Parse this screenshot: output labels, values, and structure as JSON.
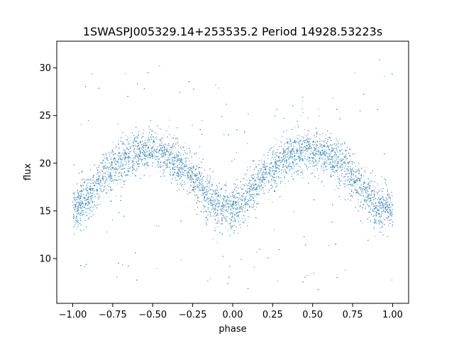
{
  "chart_data": {
    "type": "scatter",
    "title": "1SWASPJ005329.14+253535.2 Period 14928.53223s",
    "xlabel": "phase",
    "ylabel": "flux",
    "xlim": [
      -1.1,
      1.1
    ],
    "ylim": [
      5.3,
      32.8
    ],
    "x_ticks": [
      -1.0,
      -0.75,
      -0.5,
      -0.25,
      0.0,
      0.25,
      0.5,
      0.75,
      1.0
    ],
    "x_tick_labels": [
      "−1.00",
      "−0.75",
      "−0.50",
      "−0.25",
      "0.00",
      "0.25",
      "0.50",
      "0.75",
      "1.00"
    ],
    "y_ticks": [
      10,
      15,
      20,
      25,
      30
    ],
    "y_tick_labels": [
      "10",
      "15",
      "20",
      "25",
      "30"
    ],
    "grid": false,
    "marker_color": "#1f77b4",
    "phase_range": [
      -1.0,
      1.0
    ],
    "light_curve_profile": {
      "phase": [
        -1.0,
        -0.9,
        -0.8,
        -0.7,
        -0.6,
        -0.5,
        -0.4,
        -0.3,
        -0.2,
        -0.1,
        0.0,
        0.1,
        0.2,
        0.3,
        0.4,
        0.5,
        0.6,
        0.7,
        0.8,
        0.9,
        1.0
      ],
      "flux": [
        15.0,
        16.5,
        18.8,
        20.4,
        21.2,
        21.3,
        20.7,
        19.6,
        17.6,
        15.4,
        15.0,
        16.6,
        18.8,
        20.4,
        21.2,
        21.3,
        20.7,
        19.6,
        17.6,
        15.4,
        15.0
      ]
    },
    "band_halfwidth_flux": 1.6,
    "outlier_flux_range": [
      6.5,
      31.0
    ]
  }
}
